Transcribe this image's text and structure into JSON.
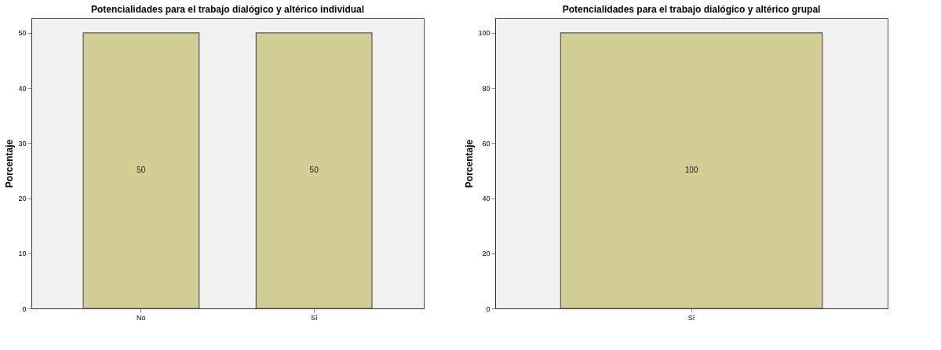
{
  "chart_data": [
    {
      "type": "bar",
      "title": "Potencialidades para el trabajo dialógico y altérico individual",
      "ylabel": "Porcentaje",
      "categories": [
        "No",
        "Sí"
      ],
      "values": [
        50,
        50
      ],
      "color": "#d3cd96",
      "ylim": [
        0,
        52.7
      ],
      "yticks": [
        0,
        10,
        20,
        30,
        40,
        50
      ],
      "data_labels": true,
      "grid": false
    },
    {
      "type": "bar",
      "title": "Potencialidades para el trabajo dialógico y altérico grupal",
      "ylabel": "Porcentaje",
      "categories": [
        "Sí"
      ],
      "values": [
        100
      ],
      "color": "#d3cd96",
      "ylim": [
        0,
        105.4
      ],
      "yticks": [
        0,
        20,
        40,
        60,
        80,
        100
      ],
      "data_labels": true,
      "grid": false
    }
  ]
}
